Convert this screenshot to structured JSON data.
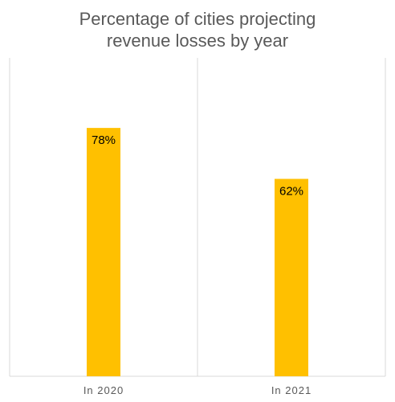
{
  "chart_data": {
    "type": "bar",
    "title_lines": [
      "Percentage of cities projecting",
      "revenue losses by year"
    ],
    "categories": [
      "In 2020",
      "In 2021"
    ],
    "values": [
      78,
      62
    ],
    "data_labels": [
      "78%",
      "62%"
    ],
    "ylim": [
      0,
      100
    ],
    "xlabel": "",
    "ylabel": "",
    "grid": false,
    "legend": "none",
    "bar_color": "#FFC000",
    "frame_color": "#D9D9D9"
  }
}
